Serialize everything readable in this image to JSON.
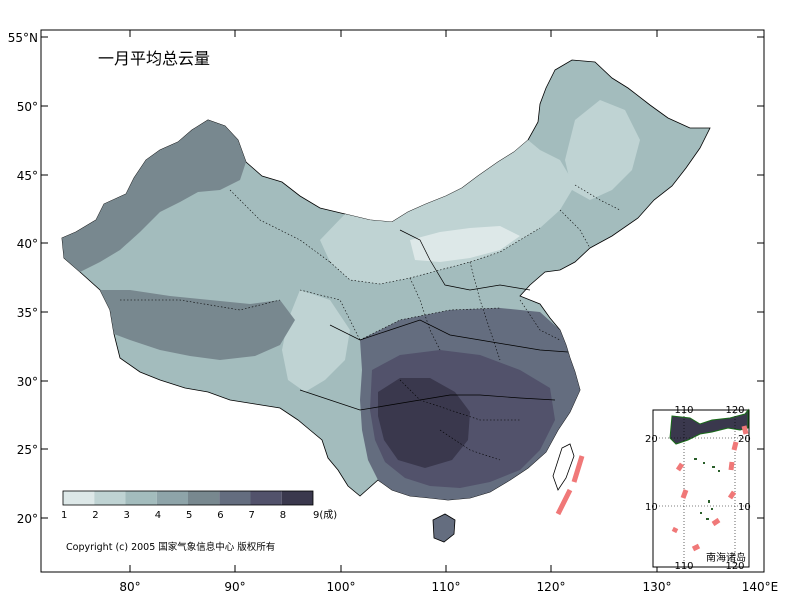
{
  "title": "一月平均总云量",
  "copyright": "Copyright (c) 2005 国家气象信息中心 版权所有",
  "axes": {
    "y_ticks": [
      "55°N",
      "50°",
      "45°",
      "40°",
      "35°",
      "30°",
      "25°",
      "20°"
    ],
    "x_ticks": [
      "80°",
      "90°",
      "100°",
      "110°",
      "120°",
      "130°",
      "140°E"
    ]
  },
  "legend": {
    "labels": [
      "1",
      "2",
      "3",
      "4",
      "5",
      "6",
      "7",
      "8",
      "9(成)"
    ],
    "colors": [
      "#dde8e8",
      "#bfd3d3",
      "#a3bcbd",
      "#8ea4a9",
      "#78888f",
      "#646d7f",
      "#52526b",
      "#3a384d"
    ]
  },
  "inset": {
    "label": "南海诸岛",
    "top_ticks": [
      "110",
      "120"
    ],
    "bottom_ticks": [
      "110",
      "120"
    ],
    "left_ticks": [
      "20",
      "10"
    ],
    "right_ticks": [
      "20",
      "10"
    ]
  },
  "colors": {
    "ocean": "#ffffff",
    "border_dash": "#f07878"
  }
}
